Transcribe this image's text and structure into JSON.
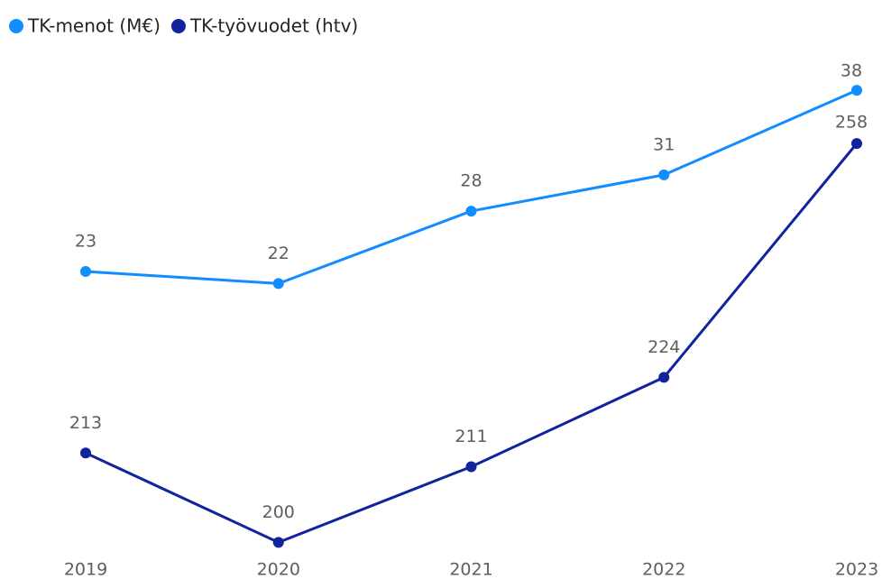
{
  "chart_data": {
    "type": "line",
    "categories": [
      "2019",
      "2020",
      "2021",
      "2022",
      "2023"
    ],
    "series": [
      {
        "name": "TK-menot (M€)",
        "color": "#118dff",
        "values": [
          23,
          22,
          28,
          31,
          38
        ]
      },
      {
        "name": "TK-työvuodet (htv)",
        "color": "#12239e",
        "values": [
          213,
          200,
          211,
          224,
          258
        ],
        "axis": "y2"
      }
    ],
    "ylim": [
      0,
      41
    ],
    "y2lim": [
      199,
      271
    ],
    "legend": "top-left"
  }
}
